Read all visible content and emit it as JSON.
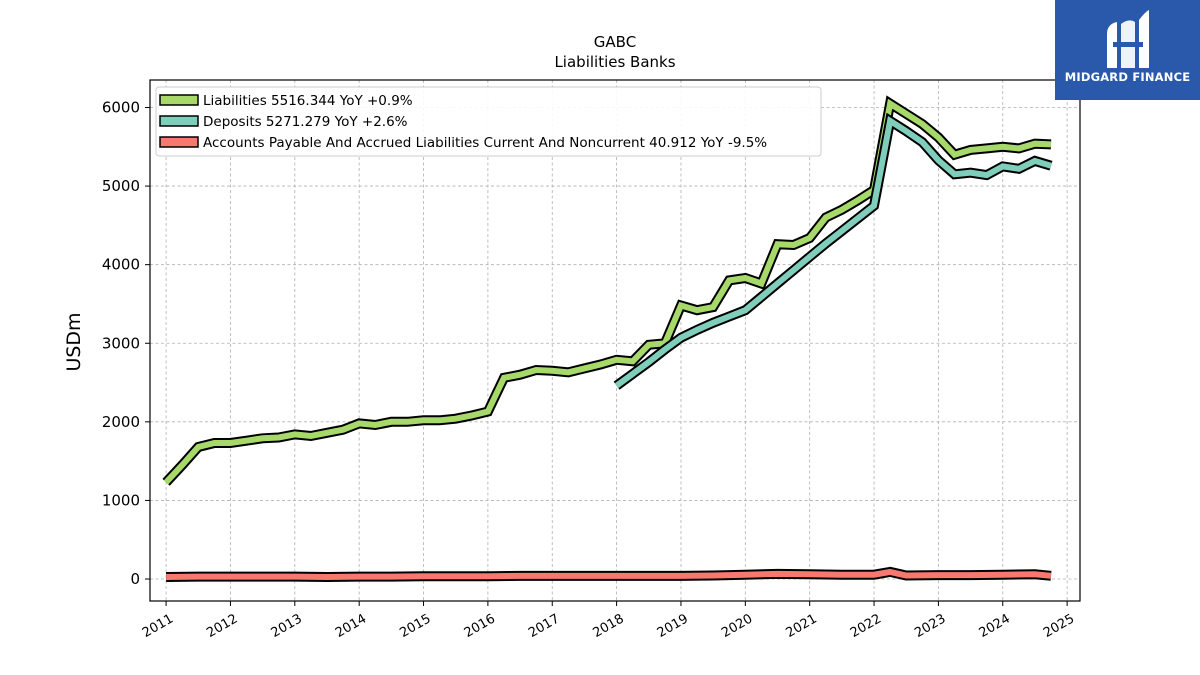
{
  "chart_data": {
    "type": "line",
    "title": "GABC",
    "subtitle": "Liabilities Banks",
    "ylabel": "USDm",
    "xlabel": "",
    "xlim": [
      2010.75,
      2025.2
    ],
    "ylim": [
      -280,
      6350
    ],
    "x_ticks": [
      "2011",
      "2012",
      "2013",
      "2014",
      "2015",
      "2016",
      "2017",
      "2018",
      "2019",
      "2020",
      "2021",
      "2022",
      "2023",
      "2024",
      "2025"
    ],
    "y_ticks": [
      0,
      1000,
      2000,
      3000,
      4000,
      5000,
      6000
    ],
    "grid": true,
    "legend_position": "top-left",
    "series": [
      {
        "name": "Liabilities  5516.344 YoY +0.9%",
        "color": "#a6d96a",
        "x": [
          2011.0,
          2011.25,
          2011.5,
          2011.75,
          2012.0,
          2012.25,
          2012.5,
          2012.75,
          2013.0,
          2013.25,
          2013.5,
          2013.75,
          2014.0,
          2014.25,
          2014.5,
          2014.75,
          2015.0,
          2015.25,
          2015.5,
          2015.75,
          2016.0,
          2016.25,
          2016.5,
          2016.75,
          2017.0,
          2017.25,
          2017.5,
          2017.75,
          2018.0,
          2018.25,
          2018.5,
          2018.75,
          2019.0,
          2019.25,
          2019.5,
          2019.75,
          2020.0,
          2020.25,
          2020.5,
          2020.75,
          2021.0,
          2021.25,
          2021.5,
          2021.75,
          2022.0,
          2022.25,
          2022.5,
          2022.75,
          2023.0,
          2023.25,
          2023.5,
          2023.75,
          2024.0,
          2024.25,
          2024.5,
          2024.75
        ],
        "values": [
          1230,
          1450,
          1680,
          1730,
          1730,
          1760,
          1790,
          1800,
          1840,
          1820,
          1860,
          1900,
          1980,
          1960,
          2000,
          2000,
          2020,
          2020,
          2040,
          2080,
          2130,
          2560,
          2600,
          2660,
          2650,
          2630,
          2680,
          2730,
          2790,
          2770,
          2980,
          3000,
          3480,
          3420,
          3460,
          3800,
          3830,
          3760,
          4260,
          4250,
          4340,
          4600,
          4700,
          4820,
          4950,
          6050,
          5920,
          5790,
          5620,
          5400,
          5460,
          5480,
          5500,
          5480,
          5540,
          5530
        ]
      },
      {
        "name": "Deposits  5271.279 YoY +2.6%",
        "color": "#7fcdbb",
        "x": [
          2018.0,
          2018.25,
          2018.5,
          2018.75,
          2019.0,
          2019.25,
          2019.5,
          2019.75,
          2020.0,
          2020.25,
          2020.5,
          2020.75,
          2021.0,
          2021.25,
          2021.5,
          2021.75,
          2022.0,
          2022.25,
          2022.5,
          2022.75,
          2023.0,
          2023.25,
          2023.5,
          2023.75,
          2024.0,
          2024.25,
          2024.5,
          2024.75
        ],
        "values": [
          2460,
          2610,
          2760,
          2920,
          3070,
          3170,
          3260,
          3340,
          3420,
          3590,
          3760,
          3930,
          4100,
          4270,
          4430,
          4590,
          4750,
          5830,
          5700,
          5560,
          5330,
          5150,
          5170,
          5140,
          5250,
          5220,
          5320,
          5260
        ]
      },
      {
        "name": "Accounts Payable And Accrued Liabilities Current And Noncurrent  40.912 YoY -9.5%",
        "color": "#f6786f",
        "x": [
          2011.0,
          2011.5,
          2012.0,
          2012.5,
          2013.0,
          2013.5,
          2014.0,
          2014.5,
          2015.0,
          2015.5,
          2016.0,
          2016.5,
          2017.0,
          2017.5,
          2018.0,
          2018.5,
          2019.0,
          2019.5,
          2020.0,
          2020.5,
          2021.0,
          2021.5,
          2022.0,
          2022.25,
          2022.5,
          2023.0,
          2023.5,
          2024.0,
          2024.5,
          2024.75
        ],
        "values": [
          25,
          30,
          30,
          30,
          30,
          25,
          30,
          30,
          35,
          35,
          35,
          40,
          40,
          40,
          40,
          40,
          40,
          45,
          55,
          65,
          60,
          55,
          55,
          90,
          45,
          50,
          50,
          55,
          60,
          41
        ]
      }
    ]
  }
}
